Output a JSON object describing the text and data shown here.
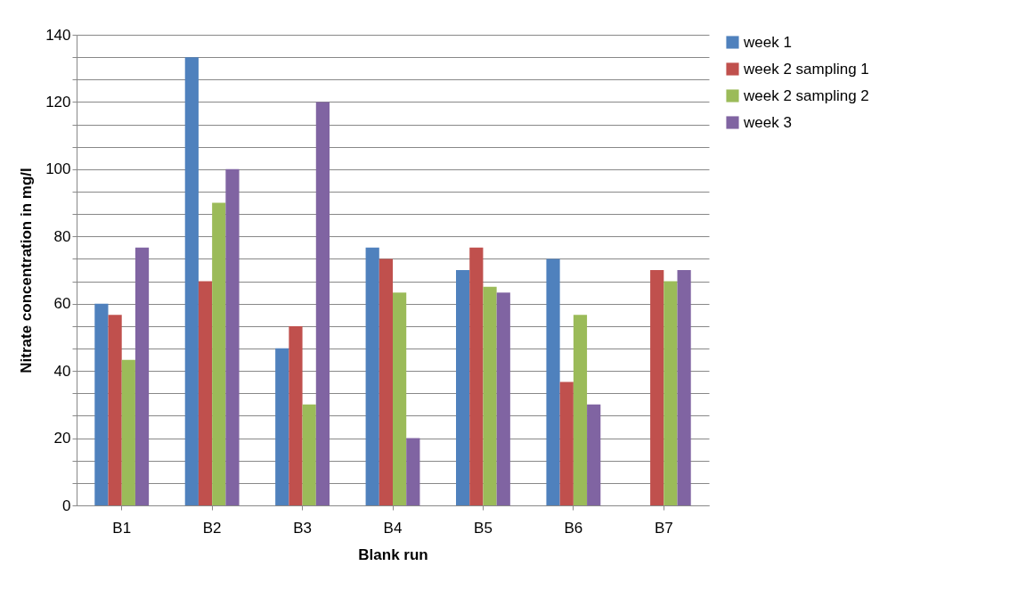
{
  "chart_data": {
    "type": "bar",
    "xlabel": "Blank run",
    "ylabel": "Nitrate concentration in mg/l",
    "categories": [
      "B1",
      "B2",
      "B3",
      "B4",
      "B5",
      "B6",
      "B7"
    ],
    "series": [
      {
        "name": "week 1",
        "color": "#4f81bd",
        "values": [
          60,
          133.3,
          46.7,
          76.7,
          70,
          73.3,
          null
        ]
      },
      {
        "name": "week 2 sampling 1",
        "color": "#c0504d",
        "values": [
          56.7,
          66.7,
          53.3,
          73.3,
          76.7,
          36.7,
          70
        ]
      },
      {
        "name": "week 2 sampling 2",
        "color": "#9bbb59",
        "values": [
          43.3,
          90,
          30,
          63.3,
          65,
          56.7,
          66.7
        ]
      },
      {
        "name": "week 3",
        "color": "#8064a2",
        "values": [
          76.7,
          100,
          120,
          20,
          63.3,
          30,
          70
        ]
      }
    ],
    "ylim": [
      0,
      140
    ],
    "yticks": [
      0,
      {
        "value": 6.67,
        "label": null
      },
      {
        "value": 13.33,
        "label": null
      },
      20,
      {
        "value": 26.67,
        "label": null
      },
      {
        "value": 33.33,
        "label": null
      },
      40,
      {
        "value": 46.67,
        "label": null
      },
      {
        "value": 53.33,
        "label": null
      },
      60,
      {
        "value": 66.67,
        "label": null
      },
      {
        "value": 73.33,
        "label": null
      },
      80,
      {
        "value": 86.67,
        "label": null
      },
      {
        "value": 93.33,
        "label": null
      },
      100,
      {
        "value": 106.67,
        "label": null
      },
      {
        "value": 113.33,
        "label": null
      },
      120,
      {
        "value": 126.67,
        "label": null
      },
      {
        "value": 133.33,
        "label": null
      },
      140
    ],
    "grid": "y",
    "legend": "right"
  }
}
